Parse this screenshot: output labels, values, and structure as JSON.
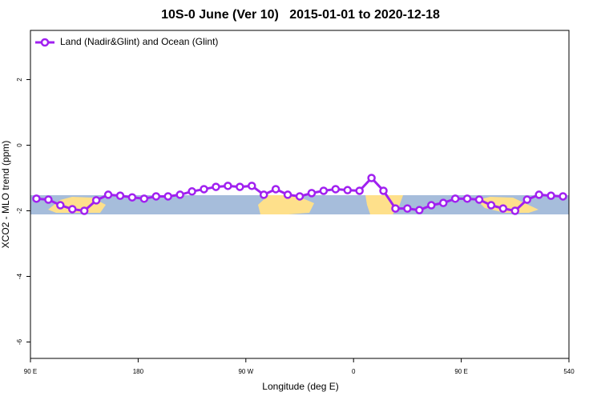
{
  "chart_data": {
    "type": "line",
    "title": "10S-0 June (Ver 10)   2015-01-01 to 2020-12-18",
    "x_label": "Longitude (deg E)",
    "y_label": "XCO2 - MLO trend (ppm)",
    "x": [
      95,
      105,
      115,
      125,
      135,
      145,
      155,
      165,
      175,
      185,
      195,
      205,
      215,
      225,
      235,
      245,
      255,
      265,
      275,
      285,
      295,
      305,
      315,
      325,
      335,
      345,
      355,
      365,
      375,
      385,
      395,
      405,
      415,
      425,
      435,
      445,
      455,
      465,
      475,
      485,
      495,
      505,
      515,
      525,
      535
    ],
    "series": [
      {
        "name": "Land (Nadir&Glint) and Ocean (Glint)",
        "color": "#a020f0",
        "values": [
          -1.63,
          -1.66,
          -1.83,
          -1.95,
          -2.0,
          -1.68,
          -1.51,
          -1.54,
          -1.59,
          -1.63,
          -1.56,
          -1.56,
          -1.51,
          -1.41,
          -1.34,
          -1.27,
          -1.24,
          -1.27,
          -1.24,
          -1.51,
          -1.34,
          -1.51,
          -1.56,
          -1.46,
          -1.39,
          -1.34,
          -1.37,
          -1.39,
          -1.0,
          -1.39,
          -1.93,
          -1.93,
          -1.98,
          -1.83,
          -1.76,
          -1.63,
          -1.63,
          -1.66,
          -1.83,
          -1.93,
          -2.0,
          -1.66,
          -1.51,
          -1.54,
          -1.56
        ]
      }
    ],
    "xlim": [
      90,
      540
    ],
    "xticks": [
      {
        "value": 90,
        "label": "90 E"
      },
      180,
      {
        "value": 270,
        "label": "90 W"
      },
      {
        "value": 360,
        "label": "0"
      },
      {
        "value": 450,
        "label": "90 E"
      },
      540
    ],
    "ylim": [
      -6.5,
      3.5
    ],
    "yticks": [
      2,
      0,
      -2,
      -4,
      -6
    ],
    "legend": "top-left"
  }
}
